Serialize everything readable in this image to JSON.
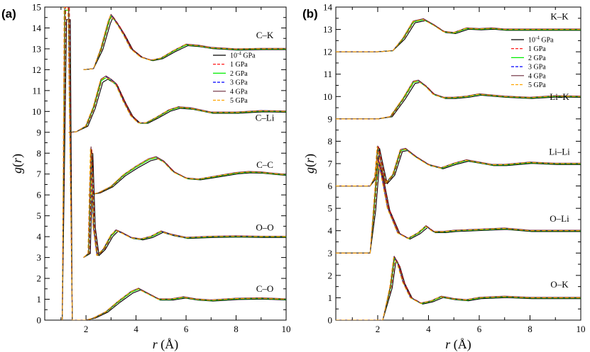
{
  "chart_data": [
    {
      "panel": "(a)",
      "type": "line",
      "xlabel": "r (Å)",
      "ylabel": "g(r)",
      "xlim": [
        0.35,
        10
      ],
      "ylim": [
        0,
        15
      ],
      "xticks": [
        2,
        4,
        6,
        8,
        10
      ],
      "yticks": [
        0,
        1,
        2,
        3,
        4,
        5,
        6,
        7,
        8,
        9,
        10,
        11,
        12,
        13,
        14,
        15
      ],
      "legend_position": "right",
      "series": [
        {
          "name": "10^-4 GPa",
          "color": "#000000",
          "dash": "solid"
        },
        {
          "name": "1 GPa",
          "color": "#ff0000",
          "dash": "dash"
        },
        {
          "name": "2 GPa",
          "color": "#00ee00",
          "dash": "solid"
        },
        {
          "name": "3 GPa",
          "color": "#0000ff",
          "dash": "dash"
        },
        {
          "name": "4 GPa",
          "color": "#6b2a3a",
          "dash": "solid"
        },
        {
          "name": "5 GPa",
          "color": "#ffa500",
          "dash": "dash"
        }
      ],
      "curves": [
        {
          "pair": "C–K",
          "offset": 12,
          "label_y": 13.5,
          "points": [
            [
              1.9,
              0
            ],
            [
              2.3,
              0.05
            ],
            [
              2.6,
              1.0
            ],
            [
              2.9,
              2.3
            ],
            [
              3.0,
              2.6
            ],
            [
              3.1,
              2.45
            ],
            [
              3.3,
              2.1
            ],
            [
              3.5,
              1.7
            ],
            [
              3.8,
              1.0
            ],
            [
              4.2,
              0.6
            ],
            [
              4.6,
              0.45
            ],
            [
              5.0,
              0.55
            ],
            [
              5.5,
              0.9
            ],
            [
              6.0,
              1.2
            ],
            [
              6.5,
              1.15
            ],
            [
              7.0,
              1.05
            ],
            [
              8.0,
              0.98
            ],
            [
              9.0,
              1.0
            ],
            [
              10.0,
              1.0
            ]
          ]
        },
        {
          "pair": "C–Li",
          "offset": 9,
          "label_y": 9.55,
          "points": [
            [
              1.3,
              0
            ],
            [
              1.6,
              0.02
            ],
            [
              2.0,
              0.3
            ],
            [
              2.3,
              1.2
            ],
            [
              2.6,
              2.5
            ],
            [
              2.8,
              2.65
            ],
            [
              3.0,
              2.5
            ],
            [
              3.2,
              2.3
            ],
            [
              3.5,
              1.5
            ],
            [
              3.8,
              0.8
            ],
            [
              4.1,
              0.45
            ],
            [
              4.4,
              0.45
            ],
            [
              4.8,
              0.7
            ],
            [
              5.3,
              1.05
            ],
            [
              5.7,
              1.2
            ],
            [
              6.2,
              1.15
            ],
            [
              7.0,
              0.95
            ],
            [
              8.0,
              0.95
            ],
            [
              9.0,
              1.02
            ],
            [
              10.0,
              1.0
            ]
          ]
        },
        {
          "pair": "C–C",
          "offset": 6,
          "label_y": 7.3,
          "points": [
            [
              2.1,
              0
            ],
            [
              2.5,
              0.1
            ],
            [
              3.0,
              0.4
            ],
            [
              3.5,
              0.95
            ],
            [
              4.0,
              1.35
            ],
            [
              4.5,
              1.7
            ],
            [
              4.8,
              1.8
            ],
            [
              5.1,
              1.6
            ],
            [
              5.5,
              1.1
            ],
            [
              6.0,
              0.8
            ],
            [
              6.5,
              0.75
            ],
            [
              7.0,
              0.85
            ],
            [
              7.5,
              0.95
            ],
            [
              8.0,
              1.05
            ],
            [
              8.5,
              1.1
            ],
            [
              9.0,
              1.08
            ],
            [
              9.5,
              1.02
            ],
            [
              10.0,
              0.97
            ]
          ]
        },
        {
          "pair": "O–O",
          "offset": 3,
          "label_y": 4.3,
          "points": [
            [
              1.9,
              0
            ],
            [
              2.1,
              0.2
            ],
            [
              2.2,
              5.2
            ],
            [
              2.3,
              1.5
            ],
            [
              2.45,
              0.1
            ],
            [
              2.7,
              0.4
            ],
            [
              3.0,
              1.05
            ],
            [
              3.2,
              1.3
            ],
            [
              3.4,
              1.2
            ],
            [
              3.8,
              0.95
            ],
            [
              4.2,
              0.88
            ],
            [
              4.6,
              1.0
            ],
            [
              5.0,
              1.25
            ],
            [
              5.4,
              1.1
            ],
            [
              6.0,
              0.95
            ],
            [
              7.0,
              1.0
            ],
            [
              8.0,
              1.02
            ],
            [
              9.0,
              1.0
            ],
            [
              10.0,
              1.0
            ]
          ]
        },
        {
          "pair": "C–O",
          "offset": 0,
          "label_y": 1.35,
          "points": [
            [
              1.05,
              0
            ],
            [
              1.15,
              15
            ],
            [
              1.3,
              15
            ],
            [
              1.45,
              0
            ],
            [
              2.0,
              0
            ],
            [
              2.3,
              0.1
            ],
            [
              2.8,
              0.4
            ],
            [
              3.3,
              0.9
            ],
            [
              3.8,
              1.35
            ],
            [
              4.1,
              1.5
            ],
            [
              4.5,
              1.25
            ],
            [
              4.9,
              1.0
            ],
            [
              5.4,
              1.0
            ],
            [
              5.9,
              1.1
            ],
            [
              6.4,
              1.0
            ],
            [
              7.0,
              0.95
            ],
            [
              8.0,
              1.03
            ],
            [
              9.0,
              1.05
            ],
            [
              10.0,
              1.0
            ]
          ]
        }
      ]
    },
    {
      "panel": "(b)",
      "type": "line",
      "xlabel": "r (Å)",
      "ylabel": "g(r)",
      "xlim": [
        0.35,
        10
      ],
      "ylim": [
        0,
        14
      ],
      "xticks": [
        2,
        4,
        6,
        8,
        10
      ],
      "yticks": [
        0,
        1,
        2,
        3,
        4,
        5,
        6,
        7,
        8,
        9,
        10,
        11,
        12,
        13,
        14
      ],
      "legend_position": "top-right",
      "series": [
        {
          "name": "10^-4 GPa",
          "color": "#000000",
          "dash": "solid"
        },
        {
          "name": "1 GPa",
          "color": "#ff0000",
          "dash": "dash"
        },
        {
          "name": "2 GPa",
          "color": "#00ee00",
          "dash": "solid"
        },
        {
          "name": "3 GPa",
          "color": "#0000ff",
          "dash": "dash"
        },
        {
          "name": "4 GPa",
          "color": "#6b2a3a",
          "dash": "solid"
        },
        {
          "name": "5 GPa",
          "color": "#ffa500",
          "dash": "dash"
        }
      ],
      "curves": [
        {
          "pair": "K–K",
          "offset": 12,
          "label_y": 13.45,
          "points": [
            [
              0.35,
              0
            ],
            [
              2.0,
              0
            ],
            [
              2.6,
              0.05
            ],
            [
              3.0,
              0.6
            ],
            [
              3.4,
              1.35
            ],
            [
              3.8,
              1.45
            ],
            [
              4.2,
              1.2
            ],
            [
              4.6,
              0.9
            ],
            [
              5.0,
              0.85
            ],
            [
              5.5,
              1.05
            ],
            [
              6.0,
              1.02
            ],
            [
              6.5,
              1.05
            ],
            [
              7.0,
              1.0
            ],
            [
              8.0,
              1.0
            ],
            [
              9.0,
              1.0
            ],
            [
              10.0,
              1.0
            ]
          ]
        },
        {
          "pair": "Li–K",
          "offset": 9,
          "label_y": 9.85,
          "points": [
            [
              0.35,
              0
            ],
            [
              2.0,
              0
            ],
            [
              2.5,
              0.1
            ],
            [
              3.0,
              0.9
            ],
            [
              3.4,
              1.65
            ],
            [
              3.6,
              1.7
            ],
            [
              3.9,
              1.45
            ],
            [
              4.2,
              1.1
            ],
            [
              4.6,
              0.95
            ],
            [
              5.0,
              0.95
            ],
            [
              5.5,
              1.0
            ],
            [
              6.0,
              1.1
            ],
            [
              6.5,
              1.05
            ],
            [
              7.0,
              1.0
            ],
            [
              8.0,
              0.95
            ],
            [
              9.0,
              1.02
            ],
            [
              10.0,
              1.0
            ]
          ]
        },
        {
          "pair": "Li–Li",
          "offset": 6,
          "label_y": 7.4,
          "points": [
            [
              0.35,
              0
            ],
            [
              1.7,
              0
            ],
            [
              1.9,
              0.4
            ],
            [
              2.0,
              1.75
            ],
            [
              2.1,
              1.2
            ],
            [
              2.3,
              0.1
            ],
            [
              2.6,
              0.5
            ],
            [
              2.9,
              1.6
            ],
            [
              3.1,
              1.65
            ],
            [
              3.5,
              1.3
            ],
            [
              4.0,
              0.95
            ],
            [
              4.5,
              0.8
            ],
            [
              5.0,
              1.0
            ],
            [
              5.5,
              1.15
            ],
            [
              6.0,
              1.05
            ],
            [
              6.5,
              0.95
            ],
            [
              7.0,
              0.95
            ],
            [
              8.0,
              1.05
            ],
            [
              9.0,
              1.0
            ],
            [
              10.0,
              1.0
            ]
          ]
        },
        {
          "pair": "O–Li",
          "offset": 3,
          "label_y": 4.4,
          "points": [
            [
              0.35,
              0
            ],
            [
              1.7,
              0
            ],
            [
              1.85,
              2.0
            ],
            [
              2.0,
              4.2
            ],
            [
              2.15,
              3.5
            ],
            [
              2.4,
              2.0
            ],
            [
              2.8,
              0.9
            ],
            [
              3.2,
              0.65
            ],
            [
              3.6,
              0.9
            ],
            [
              3.9,
              1.2
            ],
            [
              4.2,
              0.95
            ],
            [
              4.6,
              0.95
            ],
            [
              5.0,
              1.0
            ],
            [
              6.0,
              1.05
            ],
            [
              7.0,
              1.1
            ],
            [
              8.0,
              1.0
            ],
            [
              9.0,
              1.0
            ],
            [
              10.0,
              1.0
            ]
          ]
        },
        {
          "pair": "O–K",
          "offset": 0,
          "label_y": 1.45,
          "points": [
            [
              0.35,
              0
            ],
            [
              2.2,
              0
            ],
            [
              2.5,
              1.5
            ],
            [
              2.65,
              2.8
            ],
            [
              2.8,
              2.5
            ],
            [
              3.0,
              1.7
            ],
            [
              3.3,
              1.0
            ],
            [
              3.7,
              0.75
            ],
            [
              4.1,
              0.85
            ],
            [
              4.5,
              1.05
            ],
            [
              5.0,
              0.95
            ],
            [
              5.5,
              0.9
            ],
            [
              6.0,
              1.0
            ],
            [
              7.0,
              1.05
            ],
            [
              8.0,
              1.0
            ],
            [
              9.0,
              1.0
            ],
            [
              10.0,
              1.0
            ]
          ]
        }
      ]
    }
  ]
}
